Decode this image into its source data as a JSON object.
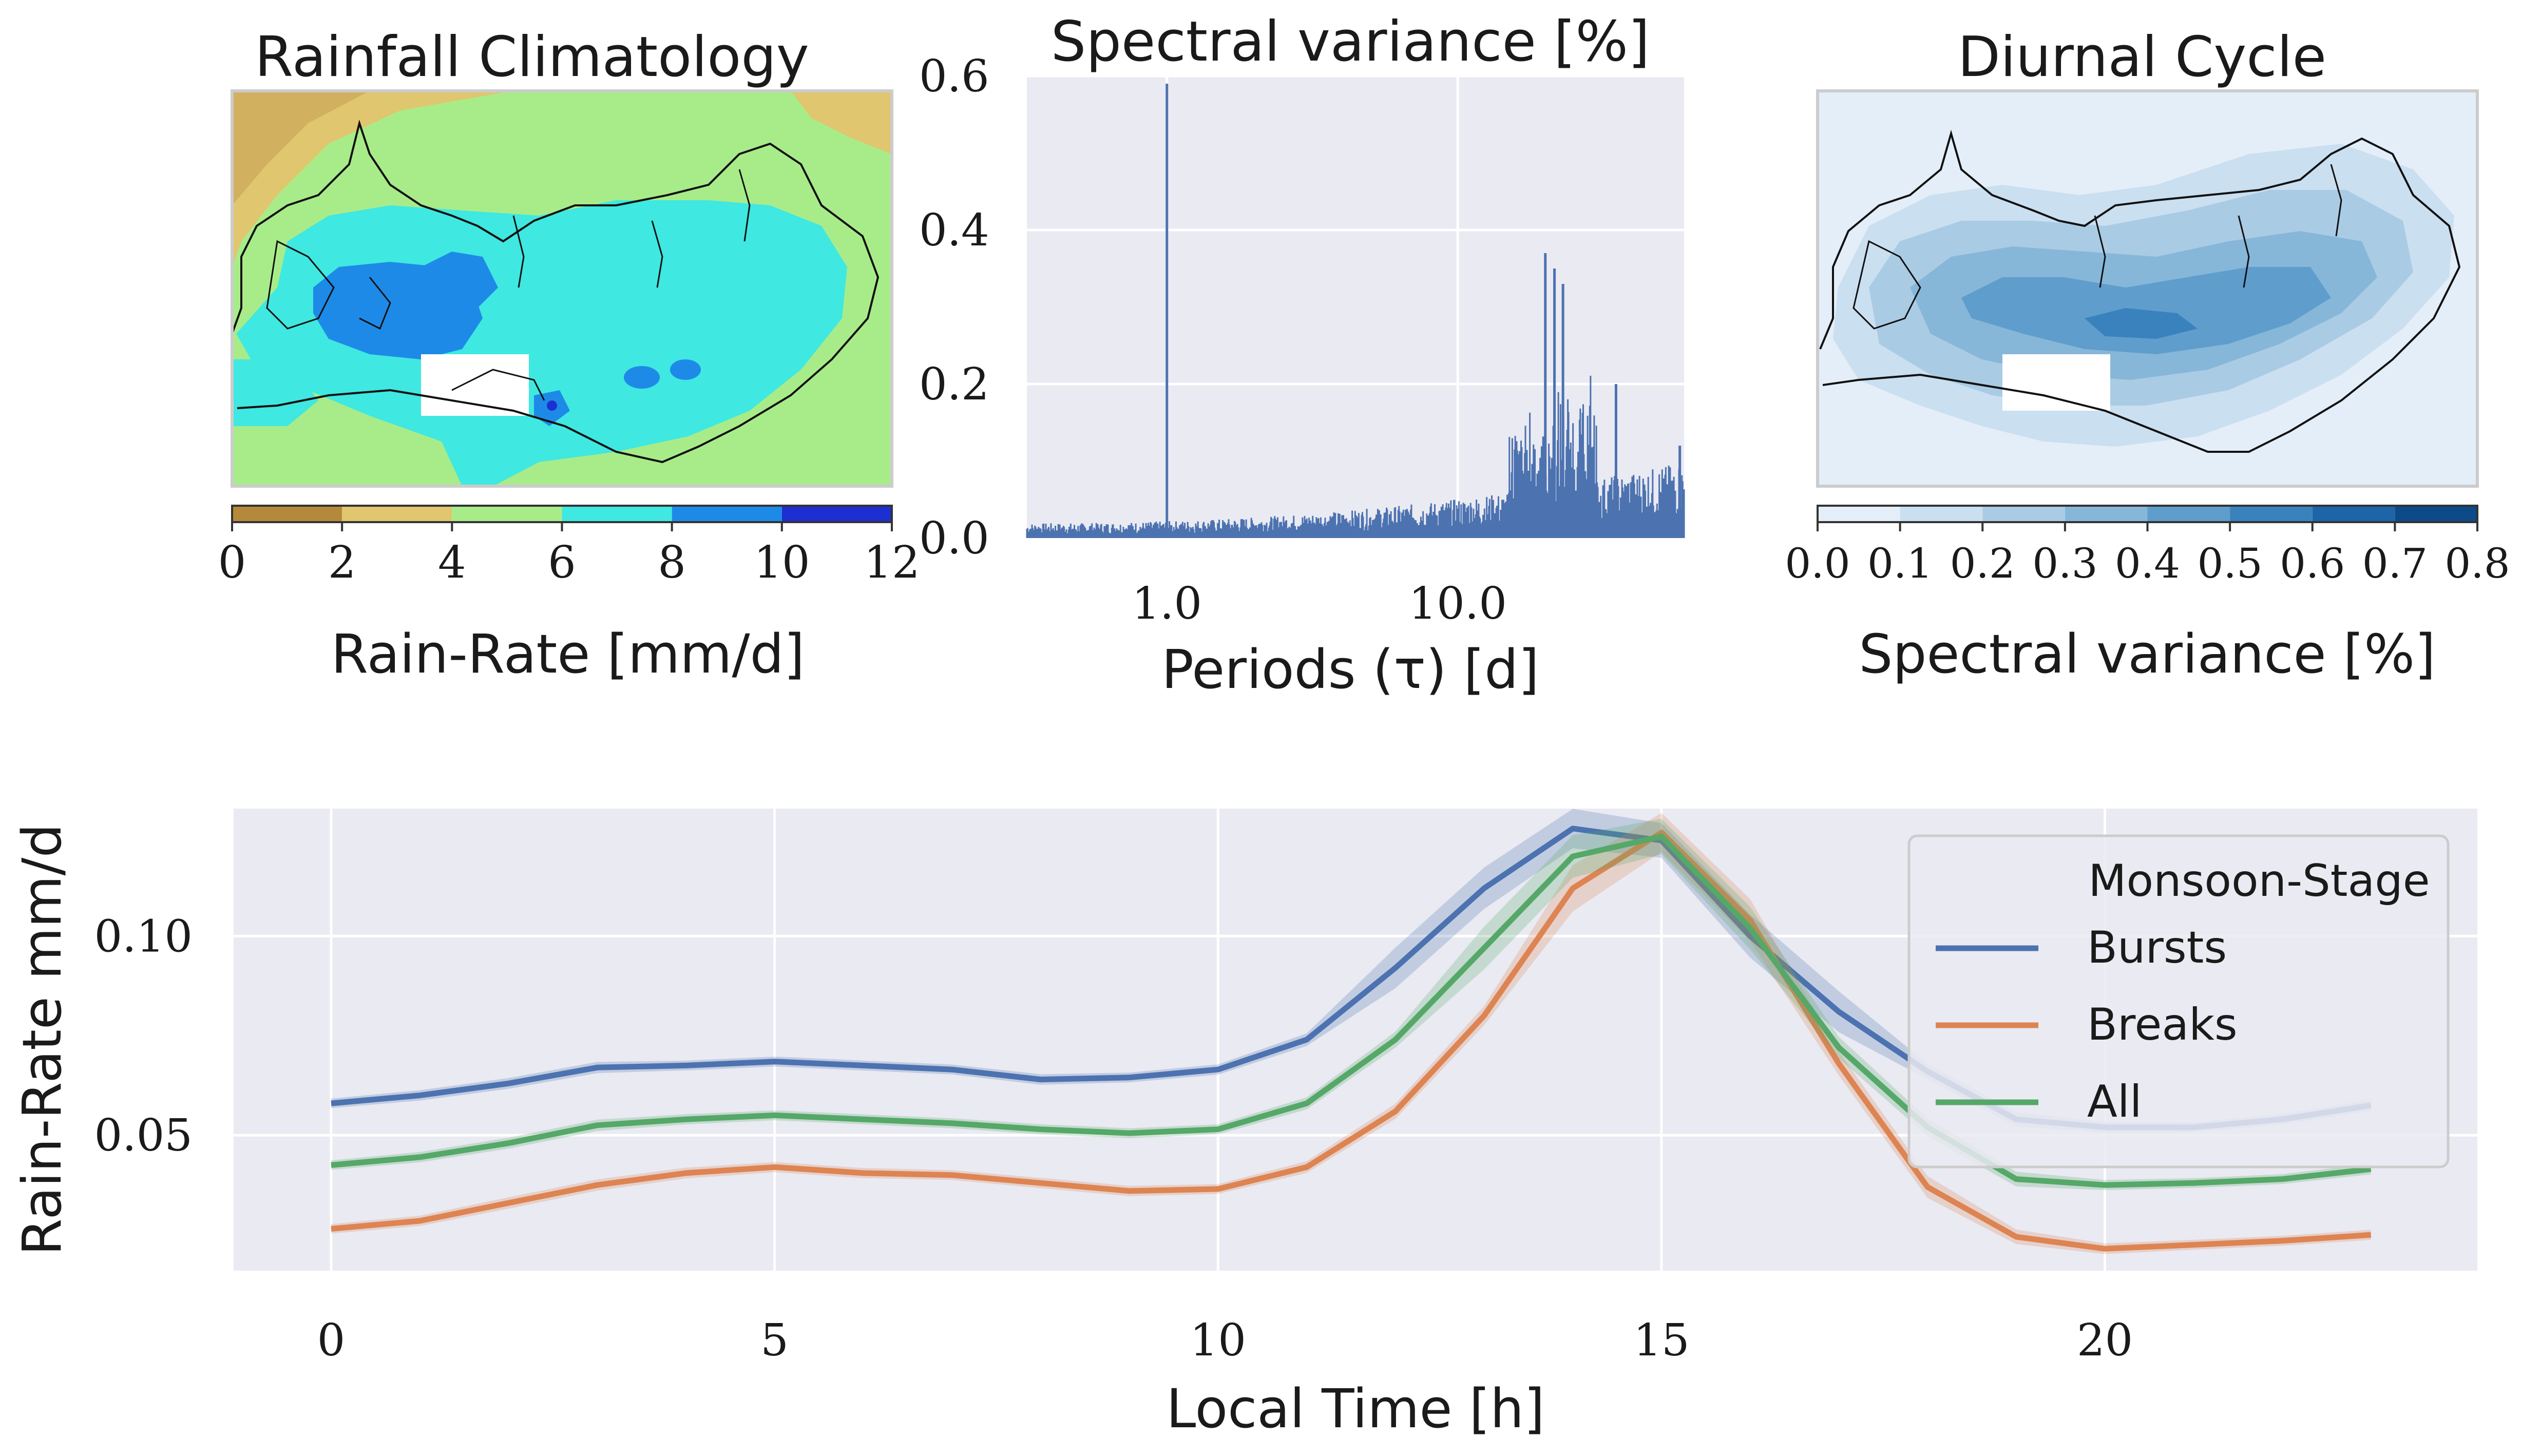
{
  "chart_data": [
    {
      "type": "heatmap",
      "title": "Rainfall Climatology",
      "colorbar": {
        "label": "Rain-Rate [mm/d]",
        "ticks": [
          "0",
          "2",
          "4",
          "6",
          "8",
          "10",
          "12"
        ],
        "levels": [
          0,
          2,
          4,
          6,
          8,
          10,
          12
        ],
        "colors": [
          "#b5893c",
          "#e0c66e",
          "#a8ec8a",
          "#3fe8e0",
          "#1e8ae8",
          "#1d2fd0"
        ]
      }
    },
    {
      "type": "bar",
      "title": "Spectral variance [%]",
      "xlabel": "Periods (τ) [d]",
      "xscale": "log",
      "xlim": [
        0.33,
        60
      ],
      "ylim": [
        0,
        0.6
      ],
      "yticks": [
        "0.0",
        "0.2",
        "0.4",
        "0.6"
      ],
      "xticks": [
        "1.0",
        "10.0"
      ],
      "grid": true,
      "color": "#4c72b0",
      "peaks": [
        {
          "x": 1.0,
          "y": 0.59
        },
        {
          "x": 20.0,
          "y": 0.37
        },
        {
          "x": 21.5,
          "y": 0.35
        },
        {
          "x": 23.0,
          "y": 0.33
        },
        {
          "x": 35.0,
          "y": 0.2
        },
        {
          "x": 58.0,
          "y": 0.12
        }
      ]
    },
    {
      "type": "heatmap",
      "title": "Diurnal Cycle",
      "colorbar": {
        "label": "Spectral variance [%]",
        "ticks": [
          "0.0",
          "0.1",
          "0.2",
          "0.3",
          "0.4",
          "0.5",
          "0.6",
          "0.7",
          "0.8"
        ],
        "levels": [
          0.0,
          0.1,
          0.2,
          0.3,
          0.4,
          0.5,
          0.6,
          0.7,
          0.8
        ],
        "colors": [
          "#e4eef8",
          "#cadff0",
          "#aacbe4",
          "#86b7d9",
          "#5f9dcc",
          "#3a82bd",
          "#1d65a8",
          "#0c4a8a"
        ]
      }
    },
    {
      "type": "line",
      "xlabel": "Local Time [h]",
      "ylabel": "Rain-Rate mm/d",
      "xlim": [
        -1.1,
        24.2
      ],
      "ylim": [
        0.016,
        0.132
      ],
      "xticks": [
        "0",
        "5",
        "10",
        "15",
        "20"
      ],
      "yticks": [
        "0.05",
        "0.10"
      ],
      "grid": true,
      "legend": {
        "title": "Monsoon-Stage",
        "position": "upper-right"
      },
      "x": [
        0,
        1,
        2,
        3,
        4,
        5,
        6,
        7,
        8,
        9,
        10,
        11,
        12,
        13,
        14,
        15,
        16,
        17,
        18,
        19,
        20,
        21,
        22,
        23
      ],
      "series": [
        {
          "name": "Bursts",
          "color": "#4c72b0",
          "values": [
            0.058,
            0.06,
            0.063,
            0.067,
            0.0675,
            0.0685,
            0.0675,
            0.0665,
            0.064,
            0.0645,
            0.0665,
            0.074,
            0.092,
            0.112,
            0.127,
            0.124,
            0.1,
            0.081,
            0.066,
            0.054,
            0.052,
            0.052,
            0.054,
            0.0575
          ]
        },
        {
          "name": "Breaks",
          "color": "#dd8452",
          "values": [
            0.0265,
            0.0285,
            0.033,
            0.0375,
            0.0405,
            0.042,
            0.0405,
            0.04,
            0.038,
            0.036,
            0.0365,
            0.042,
            0.056,
            0.08,
            0.112,
            0.126,
            0.104,
            0.068,
            0.037,
            0.0245,
            0.0215,
            0.0225,
            0.0235,
            0.025
          ]
        },
        {
          "name": "All",
          "color": "#55a868",
          "values": [
            0.0425,
            0.0445,
            0.048,
            0.0525,
            0.054,
            0.055,
            0.054,
            0.053,
            0.0515,
            0.0505,
            0.0515,
            0.058,
            0.074,
            0.097,
            0.12,
            0.125,
            0.102,
            0.072,
            0.052,
            0.039,
            0.0375,
            0.038,
            0.039,
            0.0415
          ]
        }
      ]
    }
  ]
}
